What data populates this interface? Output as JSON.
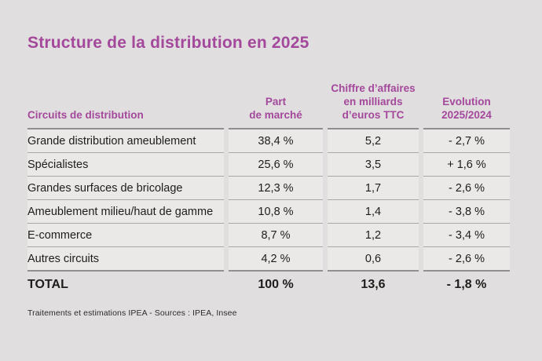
{
  "page": {
    "title": "Structure de la distribution en 2025",
    "footnote": "Traitements et estimations IPEA - Sources : IPEA, Insee"
  },
  "colors": {
    "accent_purple": "#a4489c",
    "page_background": "#e0dede",
    "cell_background": "#eae9e8",
    "rule_light": "#a9a7a6",
    "rule_dark": "#908e8e",
    "body_text": "#1d1d1b"
  },
  "table": {
    "headers": {
      "circuits": "Circuits de distribution",
      "share_l1": "Part",
      "share_l2": "de marché",
      "revenue_l1": "Chiffre d’affaires",
      "revenue_l2": "en milliards",
      "revenue_l3": "d’euros TTC",
      "evolution_l1": "Evolution",
      "evolution_l2": "2025/2024"
    },
    "rows": [
      {
        "label": "Grande distribution ameublement",
        "share": "38,4 %",
        "revenue": "5,2",
        "evolution": "- 2,7 %"
      },
      {
        "label": "Spécialistes",
        "share": "25,6 %",
        "revenue": "3,5",
        "evolution": "+ 1,6 %"
      },
      {
        "label": "Grandes surfaces de bricolage",
        "share": "12,3 %",
        "revenue": "1,7",
        "evolution": "- 2,6 %"
      },
      {
        "label": "Ameublement milieu/haut de gamme",
        "share": "10,8 %",
        "revenue": "1,4",
        "evolution": "- 3,8 %"
      },
      {
        "label": "E-commerce",
        "share": "8,7 %",
        "revenue": "1,2",
        "evolution": "- 3,4 %"
      },
      {
        "label": "Autres circuits",
        "share": "4,2 %",
        "revenue": "0,6",
        "evolution": "- 2,6 %"
      }
    ],
    "total": {
      "label": "TOTAL",
      "share": "100 %",
      "revenue": "13,6",
      "evolution": "- 1,8 %"
    }
  },
  "chart_data": {
    "type": "table",
    "title": "Structure de la distribution en 2025",
    "columns": [
      "Circuits de distribution",
      "Part de marché",
      "Chiffre d’affaires en milliards d’euros TTC",
      "Evolution 2025/2024"
    ],
    "categories": [
      "Grande distribution ameublement",
      "Spécialistes",
      "Grandes surfaces de bricolage",
      "Ameublement milieu/haut de gamme",
      "E-commerce",
      "Autres circuits"
    ],
    "series": [
      {
        "name": "Part de marché (%)",
        "values": [
          38.4,
          25.6,
          12.3,
          10.8,
          8.7,
          4.2
        ]
      },
      {
        "name": "Chiffre d’affaires (milliards d’euros TTC)",
        "values": [
          5.2,
          3.5,
          1.7,
          1.4,
          1.2,
          0.6
        ]
      },
      {
        "name": "Evolution 2025/2024 (%)",
        "values": [
          -2.7,
          1.6,
          -2.6,
          -3.8,
          -3.4,
          -2.6
        ]
      }
    ],
    "total": {
      "part_de_marche_pct": 100,
      "chiffre_affaires_mds_eur": 13.6,
      "evolution_pct": -1.8
    },
    "source": "Traitements et estimations IPEA - Sources : IPEA, Insee"
  }
}
